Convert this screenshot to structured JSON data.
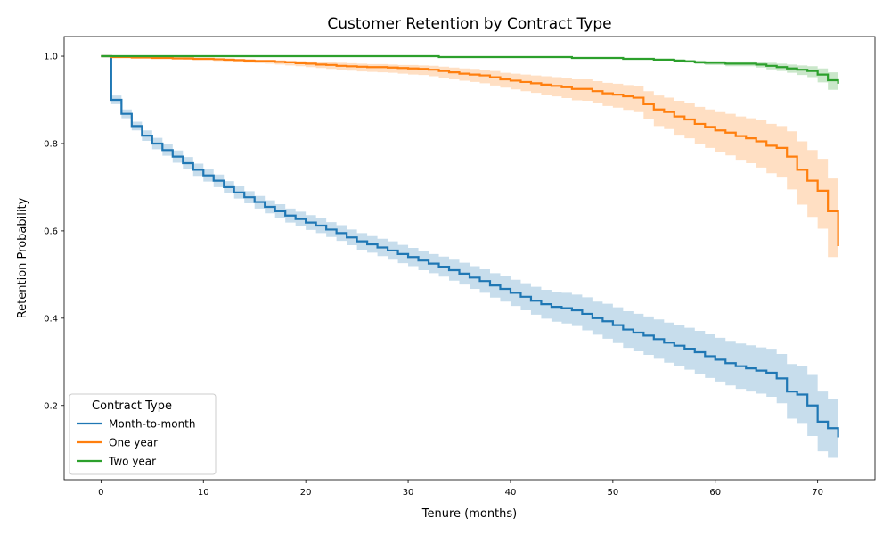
{
  "chart_data": {
    "type": "line",
    "title": "Customer Retention by Contract Type",
    "xlabel": "Tenure (months)",
    "ylabel": "Retention Probability",
    "xlim": [
      -3.6,
      75.6
    ],
    "ylim": [
      0.03,
      1.045
    ],
    "xticks": [
      0,
      10,
      20,
      30,
      40,
      50,
      60,
      70
    ],
    "yticks": [
      0.2,
      0.4,
      0.6,
      0.8,
      1.0
    ],
    "xtick_labels": [
      "0",
      "10",
      "20",
      "30",
      "40",
      "50",
      "60",
      "70"
    ],
    "ytick_labels": [
      "0.2",
      "0.4",
      "0.6",
      "0.8",
      "1.0"
    ],
    "grid": false,
    "legend": {
      "title": "Contract Type",
      "placement": "lower-left"
    },
    "series": [
      {
        "name": "Month-to-month",
        "color": "#1f77b4",
        "band_color": "#1f77b4",
        "x": [
          0,
          1,
          2,
          3,
          4,
          5,
          6,
          7,
          8,
          9,
          10,
          11,
          12,
          13,
          14,
          15,
          16,
          17,
          18,
          19,
          20,
          21,
          22,
          23,
          24,
          25,
          26,
          27,
          28,
          29,
          30,
          31,
          32,
          33,
          34,
          35,
          36,
          37,
          38,
          39,
          40,
          41,
          42,
          43,
          44,
          45,
          46,
          47,
          48,
          49,
          50,
          51,
          52,
          53,
          54,
          55,
          56,
          57,
          58,
          59,
          60,
          61,
          62,
          63,
          64,
          65,
          66,
          67,
          68,
          69,
          70,
          71,
          72
        ],
        "y": [
          1.0,
          0.9,
          0.868,
          0.84,
          0.818,
          0.8,
          0.785,
          0.77,
          0.755,
          0.74,
          0.727,
          0.715,
          0.7,
          0.688,
          0.677,
          0.666,
          0.655,
          0.645,
          0.635,
          0.627,
          0.619,
          0.612,
          0.603,
          0.595,
          0.585,
          0.576,
          0.569,
          0.562,
          0.555,
          0.547,
          0.54,
          0.532,
          0.525,
          0.518,
          0.51,
          0.502,
          0.493,
          0.485,
          0.475,
          0.467,
          0.458,
          0.449,
          0.44,
          0.432,
          0.426,
          0.423,
          0.418,
          0.41,
          0.4,
          0.393,
          0.384,
          0.374,
          0.367,
          0.36,
          0.352,
          0.344,
          0.337,
          0.33,
          0.322,
          0.313,
          0.305,
          0.297,
          0.29,
          0.285,
          0.28,
          0.275,
          0.262,
          0.232,
          0.225,
          0.2,
          0.163,
          0.148,
          0.127
        ],
        "lower": [
          1.0,
          0.89,
          0.858,
          0.83,
          0.806,
          0.787,
          0.772,
          0.756,
          0.741,
          0.726,
          0.713,
          0.7,
          0.686,
          0.674,
          0.663,
          0.651,
          0.64,
          0.629,
          0.619,
          0.61,
          0.602,
          0.595,
          0.586,
          0.577,
          0.567,
          0.557,
          0.55,
          0.542,
          0.534,
          0.526,
          0.519,
          0.51,
          0.503,
          0.495,
          0.486,
          0.477,
          0.467,
          0.458,
          0.447,
          0.438,
          0.428,
          0.418,
          0.408,
          0.399,
          0.392,
          0.388,
          0.382,
          0.372,
          0.362,
          0.353,
          0.343,
          0.332,
          0.324,
          0.316,
          0.307,
          0.298,
          0.29,
          0.282,
          0.273,
          0.263,
          0.255,
          0.246,
          0.238,
          0.232,
          0.227,
          0.22,
          0.205,
          0.17,
          0.16,
          0.13,
          0.095,
          0.08,
          0.075
        ],
        "upper": [
          1.0,
          0.91,
          0.878,
          0.85,
          0.83,
          0.813,
          0.798,
          0.784,
          0.769,
          0.754,
          0.741,
          0.729,
          0.714,
          0.702,
          0.691,
          0.68,
          0.67,
          0.661,
          0.651,
          0.644,
          0.636,
          0.629,
          0.62,
          0.613,
          0.603,
          0.595,
          0.588,
          0.582,
          0.576,
          0.568,
          0.561,
          0.554,
          0.547,
          0.541,
          0.534,
          0.527,
          0.519,
          0.512,
          0.503,
          0.496,
          0.488,
          0.48,
          0.472,
          0.465,
          0.46,
          0.458,
          0.454,
          0.448,
          0.438,
          0.433,
          0.425,
          0.416,
          0.41,
          0.404,
          0.397,
          0.39,
          0.384,
          0.378,
          0.371,
          0.363,
          0.355,
          0.348,
          0.342,
          0.338,
          0.333,
          0.33,
          0.318,
          0.295,
          0.29,
          0.27,
          0.232,
          0.215,
          0.18
        ]
      },
      {
        "name": "One year",
        "color": "#ff7f0e",
        "band_color": "#ff7f0e",
        "x": [
          0,
          1,
          2,
          3,
          4,
          5,
          6,
          7,
          8,
          9,
          10,
          11,
          12,
          13,
          14,
          15,
          16,
          17,
          18,
          19,
          20,
          21,
          22,
          23,
          24,
          25,
          26,
          27,
          28,
          29,
          30,
          31,
          32,
          33,
          34,
          35,
          36,
          37,
          38,
          39,
          40,
          41,
          42,
          43,
          44,
          45,
          46,
          47,
          48,
          49,
          50,
          51,
          52,
          53,
          54,
          55,
          56,
          57,
          58,
          59,
          60,
          61,
          62,
          63,
          64,
          65,
          66,
          67,
          68,
          69,
          70,
          71,
          72
        ],
        "y": [
          1.0,
          0.998,
          0.998,
          0.997,
          0.997,
          0.996,
          0.996,
          0.995,
          0.995,
          0.994,
          0.994,
          0.993,
          0.992,
          0.991,
          0.99,
          0.989,
          0.989,
          0.987,
          0.986,
          0.984,
          0.983,
          0.981,
          0.98,
          0.978,
          0.977,
          0.976,
          0.975,
          0.975,
          0.974,
          0.973,
          0.972,
          0.971,
          0.969,
          0.966,
          0.963,
          0.96,
          0.958,
          0.956,
          0.952,
          0.947,
          0.944,
          0.941,
          0.938,
          0.935,
          0.932,
          0.929,
          0.925,
          0.925,
          0.92,
          0.915,
          0.912,
          0.908,
          0.905,
          0.89,
          0.878,
          0.872,
          0.862,
          0.855,
          0.845,
          0.838,
          0.83,
          0.825,
          0.817,
          0.812,
          0.805,
          0.795,
          0.79,
          0.77,
          0.74,
          0.715,
          0.692,
          0.645,
          0.565
        ],
        "lower": [
          1.0,
          0.997,
          0.997,
          0.996,
          0.995,
          0.994,
          0.994,
          0.993,
          0.992,
          0.991,
          0.991,
          0.989,
          0.988,
          0.987,
          0.985,
          0.984,
          0.983,
          0.981,
          0.979,
          0.977,
          0.975,
          0.973,
          0.971,
          0.969,
          0.967,
          0.965,
          0.964,
          0.963,
          0.962,
          0.96,
          0.958,
          0.957,
          0.954,
          0.951,
          0.947,
          0.944,
          0.941,
          0.938,
          0.933,
          0.928,
          0.924,
          0.92,
          0.916,
          0.912,
          0.908,
          0.904,
          0.899,
          0.898,
          0.892,
          0.886,
          0.882,
          0.877,
          0.872,
          0.855,
          0.84,
          0.833,
          0.82,
          0.812,
          0.8,
          0.79,
          0.78,
          0.773,
          0.763,
          0.755,
          0.745,
          0.732,
          0.722,
          0.695,
          0.66,
          0.632,
          0.605,
          0.54,
          0.445
        ],
        "upper": [
          1.0,
          0.999,
          0.999,
          0.998,
          0.998,
          0.997,
          0.997,
          0.996,
          0.996,
          0.996,
          0.996,
          0.995,
          0.995,
          0.994,
          0.993,
          0.992,
          0.992,
          0.991,
          0.99,
          0.989,
          0.988,
          0.987,
          0.986,
          0.985,
          0.984,
          0.983,
          0.982,
          0.982,
          0.981,
          0.98,
          0.98,
          0.979,
          0.978,
          0.976,
          0.974,
          0.972,
          0.971,
          0.969,
          0.966,
          0.962,
          0.96,
          0.958,
          0.956,
          0.954,
          0.952,
          0.95,
          0.947,
          0.947,
          0.943,
          0.939,
          0.937,
          0.934,
          0.932,
          0.92,
          0.91,
          0.905,
          0.898,
          0.892,
          0.884,
          0.878,
          0.872,
          0.868,
          0.862,
          0.858,
          0.853,
          0.845,
          0.84,
          0.828,
          0.805,
          0.785,
          0.765,
          0.72,
          0.68
        ]
      },
      {
        "name": "Two year",
        "color": "#2ca02c",
        "band_color": "#2ca02c",
        "x": [
          0,
          33,
          46,
          51,
          54,
          56,
          57,
          58,
          59,
          61,
          64,
          65,
          66,
          67,
          68,
          69,
          70,
          71,
          72
        ],
        "y": [
          1.0,
          0.998,
          0.996,
          0.994,
          0.992,
          0.99,
          0.988,
          0.986,
          0.985,
          0.983,
          0.981,
          0.978,
          0.975,
          0.972,
          0.969,
          0.966,
          0.958,
          0.945,
          0.937
        ],
        "lower": [
          1.0,
          0.997,
          0.995,
          0.992,
          0.99,
          0.987,
          0.985,
          0.982,
          0.98,
          0.977,
          0.974,
          0.97,
          0.966,
          0.962,
          0.957,
          0.952,
          0.94,
          0.923,
          0.912
        ],
        "upper": [
          1.0,
          0.999,
          0.998,
          0.996,
          0.995,
          0.993,
          0.992,
          0.99,
          0.989,
          0.988,
          0.987,
          0.985,
          0.983,
          0.981,
          0.979,
          0.977,
          0.972,
          0.963,
          0.957
        ]
      }
    ]
  }
}
